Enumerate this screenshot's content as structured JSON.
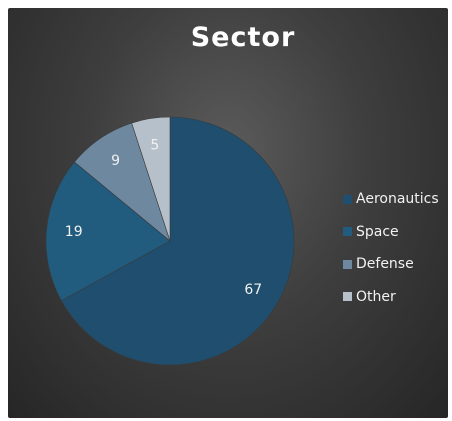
{
  "chart_data": {
    "type": "pie",
    "title": "Sector",
    "categories": [
      "Aeronautics",
      "Space",
      "Defense",
      "Other"
    ],
    "values": [
      67,
      19,
      9,
      5
    ],
    "colors": [
      "#1f4e6e",
      "#215b7e",
      "#6e889f",
      "#b6c0cb"
    ],
    "data_labels": [
      "67",
      "19",
      "9",
      "5"
    ],
    "start_angle": "12 o'clock",
    "direction": "clockwise",
    "legend_position": "right"
  }
}
